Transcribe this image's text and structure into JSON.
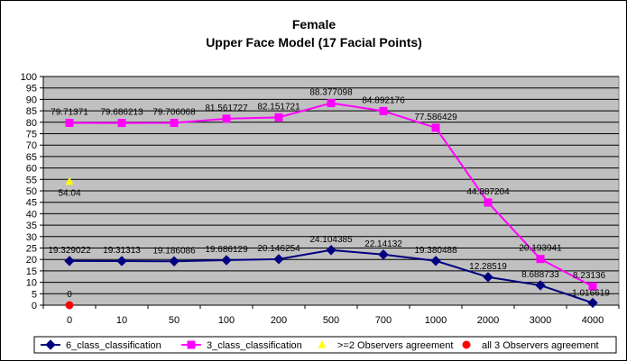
{
  "chart_data": {
    "type": "line",
    "title": "Female",
    "subtitle": "Upper Face Model (17 Facial Points)",
    "xlabel": "",
    "ylabel": "",
    "categories": [
      "0",
      "10",
      "50",
      "100",
      "200",
      "500",
      "700",
      "1000",
      "2000",
      "3000",
      "4000"
    ],
    "ylim": [
      0,
      100
    ],
    "yticks": [
      0,
      5,
      10,
      15,
      20,
      25,
      30,
      35,
      40,
      45,
      50,
      55,
      60,
      65,
      70,
      75,
      80,
      85,
      90,
      95,
      100
    ],
    "grid": true,
    "legend_position": "bottom",
    "plot_background": "#c0c0c0",
    "series": [
      {
        "name": "6_class_classification",
        "color": "#000080",
        "marker": "diamond",
        "values": [
          19.329022,
          19.31313,
          19.186086,
          19.686129,
          20.146254,
          24.104385,
          22.14132,
          19.380488,
          12.28519,
          8.688733,
          1.016619
        ],
        "labels": [
          "19.329022",
          "19.31313",
          "19.186086",
          "19.686129",
          "20.146254",
          "24.104385",
          "22.14132",
          "19.380488",
          "12.28519",
          "8.688733",
          "1.016619"
        ]
      },
      {
        "name": "3_class_classification",
        "color": "#ff00ff",
        "marker": "square",
        "values": [
          79.71371,
          79.686213,
          79.706068,
          81.561727,
          82.151721,
          88.377098,
          84.892176,
          77.586429,
          44.887204,
          20.193941,
          8.23136
        ],
        "labels": [
          "79.71371",
          "79.686213",
          "79.706068",
          "81.561727",
          "82.151721",
          "88.377098",
          "84.892176",
          "77.586429",
          "44.887204",
          "20.193941",
          "8.23136"
        ]
      },
      {
        "name": ">=2 Observers agreement",
        "color": "#ffff00",
        "marker": "triangle",
        "values": [
          54.04,
          null,
          null,
          null,
          null,
          null,
          null,
          null,
          null,
          null,
          null
        ],
        "labels": [
          "54.04",
          null,
          null,
          null,
          null,
          null,
          null,
          null,
          null,
          null,
          null
        ]
      },
      {
        "name": "all 3 Observers agreement",
        "color": "#ff0000",
        "marker": "circle",
        "values": [
          0,
          null,
          null,
          null,
          null,
          null,
          null,
          null,
          null,
          null,
          null
        ],
        "labels": [
          "0",
          null,
          null,
          null,
          null,
          null,
          null,
          null,
          null,
          null,
          null
        ]
      }
    ]
  }
}
